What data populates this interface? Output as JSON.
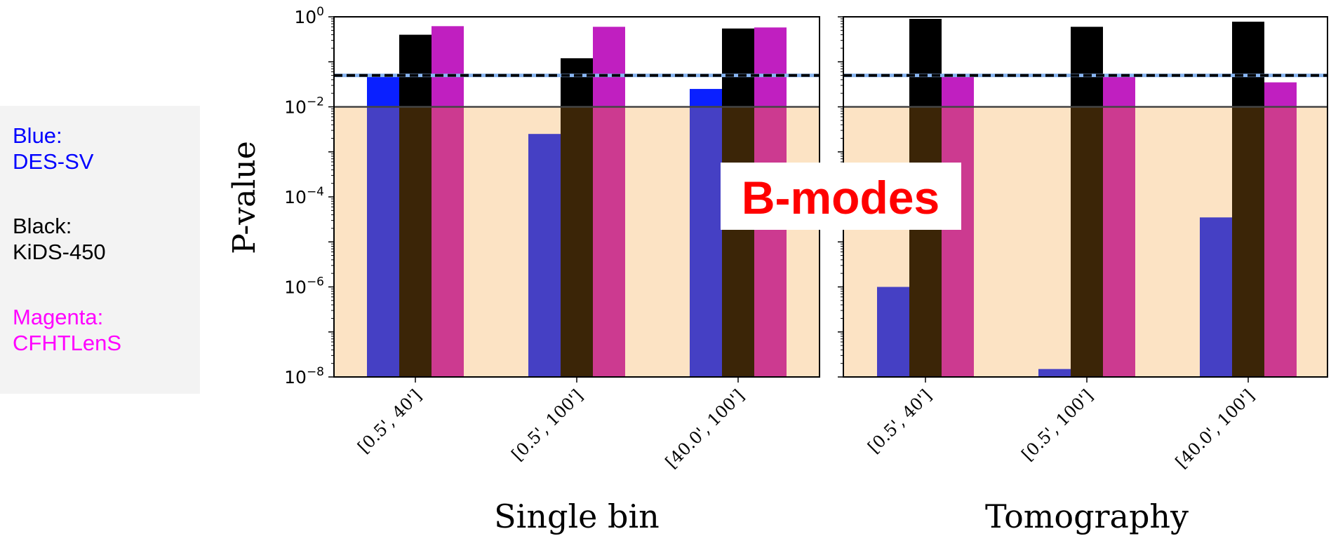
{
  "legend": [
    {
      "label": "Blue:",
      "survey": "DES-SV",
      "color": "#0000ff"
    },
    {
      "label": "Black:",
      "survey": "KiDS-450",
      "color": "#000000"
    },
    {
      "label": "Magenta:",
      "survey": "CFHTLenS",
      "color": "#ff00ff"
    }
  ],
  "overlay_label": "B-modes",
  "colors": {
    "overlay_text": "#ff0000",
    "shade": "#fce3c4",
    "des_bar": "#0a20ff",
    "kids_bar": "#000000",
    "cfht_bar": "#c01fc0",
    "des_bar_shaded": "#4540c4",
    "kids_bar_shaded": "#3b2507",
    "cfht_bar_shaded": "#cc3a90",
    "threshold_line": "#000000",
    "threshold_line_under": "#87b4f0"
  },
  "chart_data": {
    "type": "bar",
    "ylabel": "P-value",
    "yscale": "log",
    "ylim": [
      1e-08,
      1
    ],
    "yticks": [
      {
        "exp": "0",
        "value": 1
      },
      {
        "exp": "−2",
        "value": 0.01
      },
      {
        "exp": "−4",
        "value": 0.0001
      },
      {
        "exp": "−6",
        "value": 1e-06
      },
      {
        "exp": "−8",
        "value": 1e-08
      }
    ],
    "threshold": 0.05,
    "shaded_below": 0.01,
    "panels": [
      {
        "xlabel": "Single bin",
        "categories": [
          "[0.5', 40']",
          "[0.5', 100']",
          "[40.0', 100']"
        ],
        "series": [
          {
            "name": "DES-SV",
            "values": [
              0.05,
              0.0025,
              0.025
            ]
          },
          {
            "name": "KiDS-450",
            "values": [
              0.4,
              0.12,
              0.55
            ]
          },
          {
            "name": "CFHTLenS",
            "values": [
              0.62,
              0.6,
              0.58
            ]
          }
        ]
      },
      {
        "xlabel": "Tomography",
        "categories": [
          "[0.5', 40']",
          "[0.5', 100']",
          "[40.0', 100']"
        ],
        "series": [
          {
            "name": "DES-SV",
            "values": [
              1e-06,
              1.5e-08,
              3.5e-05
            ]
          },
          {
            "name": "KiDS-450",
            "values": [
              0.9,
              0.6,
              0.78
            ]
          },
          {
            "name": "CFHTLenS",
            "values": [
              0.05,
              0.048,
              0.035
            ]
          }
        ]
      }
    ]
  }
}
